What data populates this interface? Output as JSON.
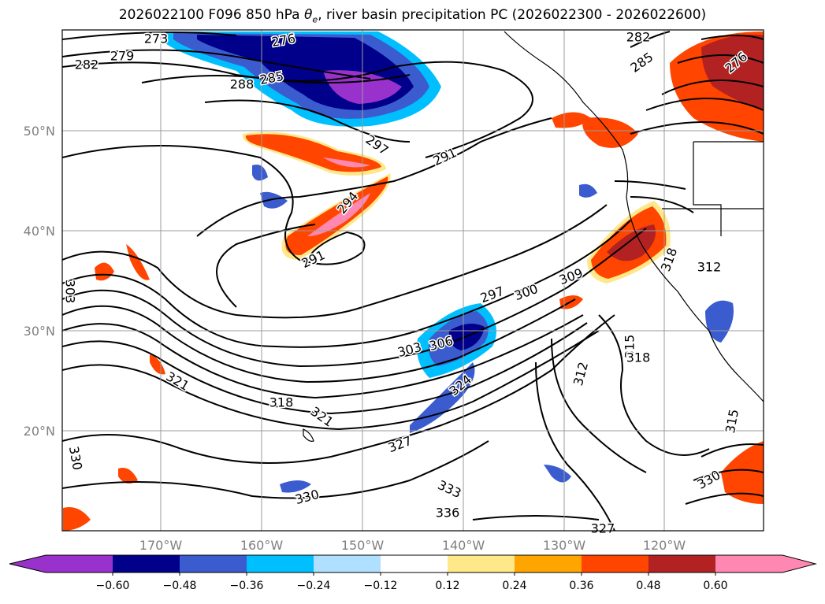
{
  "title": {
    "prefix": "2026022100 F096 850 hPa ",
    "symbol": "θ",
    "symbol_sub": "e",
    "suffix": ", river basin precipitation PC (2026022300 - 2026022600)"
  },
  "map": {
    "lat_labels": [
      "50°N",
      "40°N",
      "30°N",
      "20°N"
    ],
    "lon_labels": [
      "170°W",
      "160°W",
      "150°W",
      "140°W",
      "130°W",
      "120°W"
    ],
    "contour_labels": [
      "273",
      "276",
      "282",
      "279",
      "285",
      "288",
      "282",
      "285",
      "276",
      "297",
      "291",
      "294",
      "291",
      "303",
      "297",
      "300",
      "309",
      "303",
      "306",
      "315",
      "324",
      "318",
      "321",
      "321",
      "327",
      "312",
      "315",
      "318",
      "330",
      "330",
      "333",
      "336",
      "327",
      "312",
      "318",
      "330"
    ]
  },
  "colorbar": {
    "ticks": [
      "−0.60",
      "−0.48",
      "−0.36",
      "−0.24",
      "−0.12",
      "0.12",
      "0.24",
      "0.36",
      "0.48",
      "0.60"
    ],
    "under_color": "#9932cc",
    "over_color": "#ff88b2",
    "colors": [
      "#9932cc",
      "#00008b",
      "#3b5ccf",
      "#00bfff",
      "#b0e0ff",
      "#ffffff",
      "#ffe88a",
      "#ffa500",
      "#ff4500",
      "#b22222",
      "#ff88b2"
    ]
  }
}
